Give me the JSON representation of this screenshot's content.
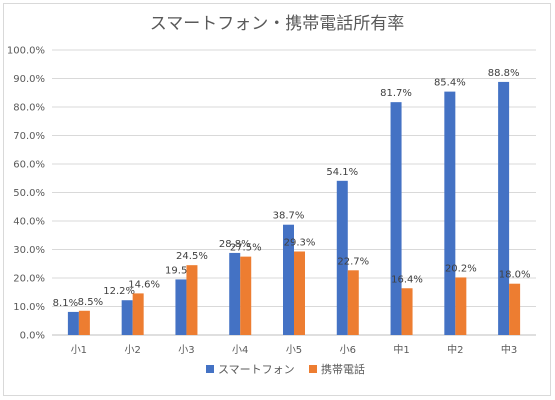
{
  "chart_data": {
    "type": "bar",
    "title": "スマートフォン・携帯電話所有率",
    "categories": [
      "小1",
      "小2",
      "小3",
      "小4",
      "小5",
      "小6",
      "中1",
      "中2",
      "中3"
    ],
    "series": [
      {
        "name": "スマートフォン",
        "color": "#4472c4",
        "values": [
          8.1,
          12.2,
          19.5,
          28.8,
          38.7,
          54.1,
          81.7,
          85.4,
          88.8
        ],
        "labels": [
          "8.1%",
          "12.2%",
          "19.5%",
          "28.8%",
          "38.7%",
          "54.1%",
          "81.7%",
          "85.4%",
          "88.8%"
        ]
      },
      {
        "name": "携帯電話",
        "color": "#ed7d31",
        "values": [
          8.5,
          14.6,
          24.5,
          27.5,
          29.3,
          22.7,
          16.4,
          20.2,
          18.0
        ],
        "labels": [
          "8.5%",
          "14.6%",
          "24.5%",
          "27.5%",
          "29.3%",
          "22.7%",
          "16.4%",
          "20.2%",
          "18.0%"
        ]
      }
    ],
    "yticks": [
      "0.0%",
      "10.0%",
      "20.0%",
      "30.0%",
      "40.0%",
      "50.0%",
      "60.0%",
      "70.0%",
      "80.0%",
      "90.0%",
      "100.0%"
    ],
    "ylim": [
      0,
      100
    ],
    "grid": true,
    "legend_position": "bottom"
  }
}
